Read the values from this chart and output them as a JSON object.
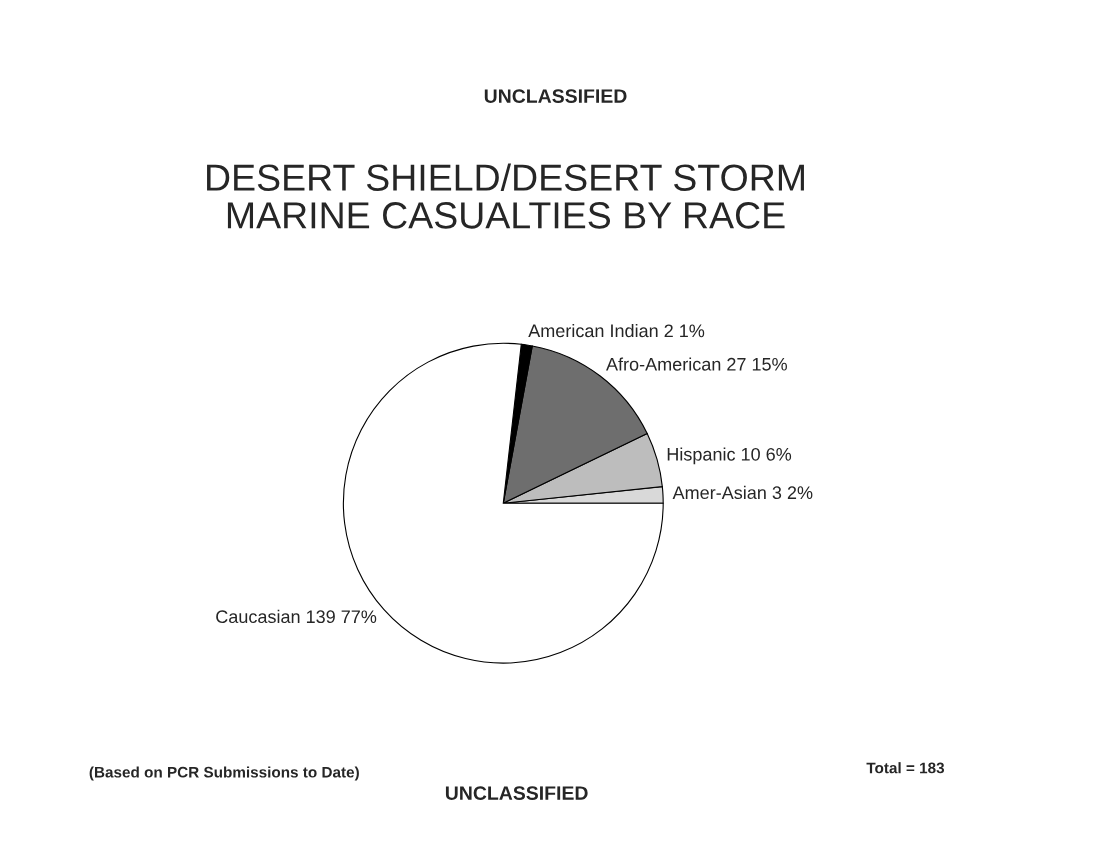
{
  "chart_data": {
    "type": "pie",
    "subtitle": "UNCLASSIFIED",
    "title": "DESERT SHIELD/DESERT STORM\nMARINE CASUALTIES BY RACE",
    "categories": [
      "Amer-Asian",
      "Hispanic",
      "Afro-American",
      "American Indian",
      "Caucasian"
    ],
    "values": [
      3,
      10,
      27,
      2,
      139
    ],
    "value_labels": [
      "3 2%",
      "10 6%",
      "27 15%",
      "2 1%",
      "139 77%"
    ],
    "colors": [
      "#d9d9d9",
      "#bdbdbd",
      "#6e6e6e",
      "#000000",
      "#ffffff"
    ],
    "annotations": [
      "(Based on PCR Submissions to Date)",
      "UNCLASSIFIED",
      "Total = 183"
    ]
  }
}
